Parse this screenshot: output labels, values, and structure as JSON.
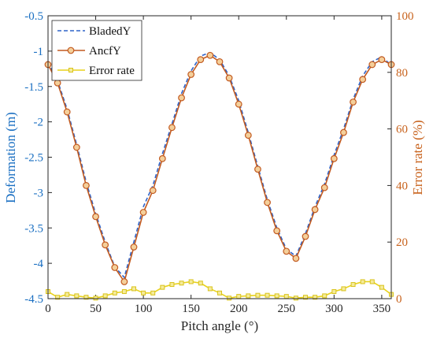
{
  "chart_data": {
    "type": "line",
    "title": "",
    "xlabel": "Pitch angle (°)",
    "ylabel_left": "Deformation (m)",
    "ylabel_right": "Error rate (%)",
    "xlim": [
      0,
      360
    ],
    "ylim_left": [
      -4.5,
      -0.5
    ],
    "ylim_right": [
      0,
      100
    ],
    "x_ticks": [
      0,
      50,
      100,
      150,
      200,
      250,
      300,
      350
    ],
    "y_left_ticks": [
      -4.5,
      -4,
      -3.5,
      -3,
      -2.5,
      -2,
      -1.5,
      -1,
      -0.5
    ],
    "y_left_tick_labels": [
      "-4.5",
      "-4",
      "-3.5",
      "-3",
      "-2.5",
      "-2",
      "-1.5",
      "-1",
      "-0.5"
    ],
    "y_right_ticks": [
      0,
      20,
      40,
      60,
      80,
      100
    ],
    "grid": false,
    "legend_position": "top-left",
    "x": [
      0,
      10,
      20,
      30,
      40,
      50,
      60,
      70,
      80,
      90,
      100,
      110,
      120,
      130,
      140,
      150,
      160,
      170,
      180,
      190,
      200,
      210,
      220,
      230,
      240,
      250,
      260,
      270,
      280,
      290,
      300,
      310,
      320,
      330,
      340,
      350,
      360
    ],
    "series": [
      {
        "name": "BladedY",
        "axis": "left",
        "style": "dashed",
        "color": "#2e63c9",
        "values": [
          -1.16,
          -1.42,
          -1.82,
          -2.32,
          -2.85,
          -3.3,
          -3.7,
          -4.05,
          -4.2,
          -3.7,
          -3.2,
          -2.9,
          -2.45,
          -2.03,
          -1.6,
          -1.28,
          -1.07,
          -1.02,
          -1.12,
          -1.35,
          -1.7,
          -2.15,
          -2.63,
          -3.1,
          -3.5,
          -3.8,
          -3.9,
          -3.58,
          -3.2,
          -2.88,
          -2.47,
          -2.1,
          -1.68,
          -1.35,
          -1.15,
          -1.08,
          -1.2
        ]
      },
      {
        "name": "AncfY",
        "axis": "left",
        "style": "solid-circle",
        "color": "#c25a20",
        "values": [
          -1.19,
          -1.45,
          -1.86,
          -2.36,
          -2.9,
          -3.34,
          -3.74,
          -4.06,
          -4.26,
          -3.77,
          -3.28,
          -2.97,
          -2.52,
          -2.08,
          -1.66,
          -1.33,
          -1.12,
          -1.06,
          -1.15,
          -1.38,
          -1.75,
          -2.19,
          -2.67,
          -3.14,
          -3.54,
          -3.83,
          -3.93,
          -3.62,
          -3.24,
          -2.93,
          -2.52,
          -2.15,
          -1.72,
          -1.4,
          -1.19,
          -1.12,
          -1.19
        ]
      },
      {
        "name": "Error rate",
        "axis": "right",
        "style": "solid-square",
        "color": "#e8d21c",
        "values": [
          2.5,
          0.5,
          1.5,
          1,
          0.5,
          0.2,
          1,
          2,
          2.5,
          3.5,
          2,
          2,
          4,
          5,
          5.5,
          6,
          5.5,
          3.5,
          2,
          0.2,
          0.8,
          1,
          1.2,
          1.2,
          1,
          0.8,
          0.2,
          0.5,
          0.5,
          1,
          2.5,
          3.5,
          5,
          6,
          6,
          4,
          1.5
        ]
      }
    ]
  }
}
